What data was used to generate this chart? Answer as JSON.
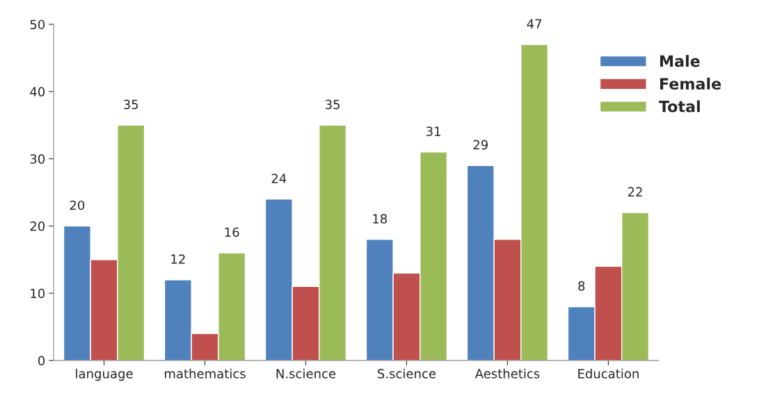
{
  "chart_data": {
    "type": "bar",
    "categories": [
      "language",
      "mathematics",
      "N.science",
      "S.science",
      "Aesthetics",
      "Education"
    ],
    "series": [
      {
        "name": "Male",
        "color": "#4f81bd",
        "values": [
          20,
          12,
          24,
          18,
          29,
          8
        ],
        "value_labels": [
          "20",
          "12",
          "24",
          "18",
          "29",
          "8"
        ]
      },
      {
        "name": "Female",
        "color": "#c0504d",
        "values": [
          15,
          4,
          11,
          13,
          18,
          14
        ],
        "value_labels": [
          null,
          null,
          null,
          null,
          null,
          null
        ]
      },
      {
        "name": "Total",
        "color": "#9bbb59",
        "values": [
          35,
          16,
          35,
          31,
          47,
          22
        ],
        "value_labels": [
          "35",
          "16",
          "35",
          "31",
          "47",
          "22"
        ]
      }
    ],
    "ylim": [
      0,
      50
    ],
    "yticks": [
      0,
      10,
      20,
      30,
      40,
      50
    ],
    "legend": "top right",
    "grid": false
  }
}
